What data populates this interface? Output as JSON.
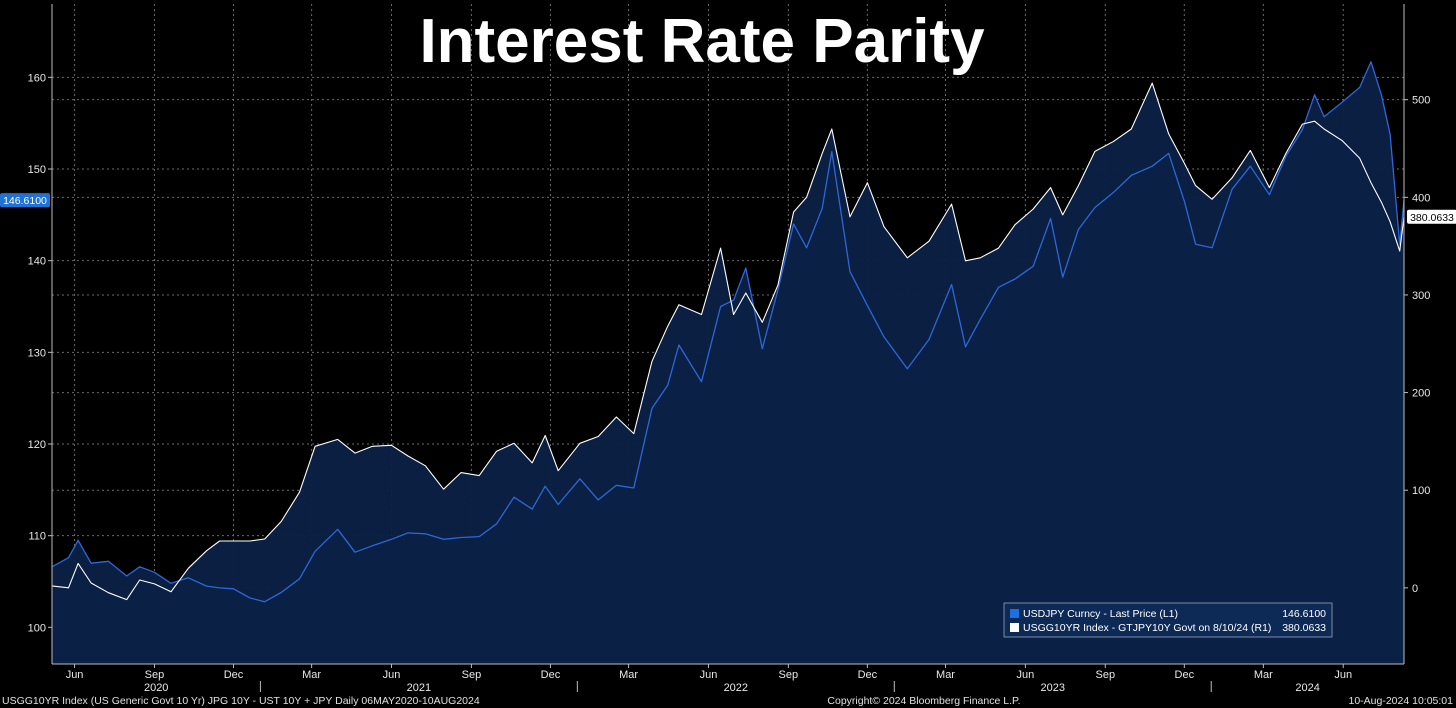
{
  "title": "Interest Rate Parity",
  "colors": {
    "background": "#000000",
    "area_fill": "#0b2146",
    "usdjpy_line": "#2e67d8",
    "spread_line": "#ffffff",
    "current_tag_left": "#1f73d6",
    "grid": "#6a6a6a"
  },
  "footer": {
    "left": "USGG10YR Index (US Generic Govt 10 Yr) JPG 10Y - UST 10Y + JPY  Daily 06MAY2020-10AUG2024",
    "center": "Copyright© 2024 Bloomberg Finance L.P.",
    "right": "10-Aug-2024 10:05:01"
  },
  "legend": {
    "items": [
      {
        "label": "USDJPY Curncy - Last Price (L1)",
        "value": "146.6100",
        "color": "#1f6fe0"
      },
      {
        "label": "USGG10YR Index - GTJPY10Y Govt on 8/10/24 (R1)",
        "value": "380.0633",
        "color": "#ffffff"
      }
    ]
  },
  "chart_data": {
    "type": "line",
    "grid": true,
    "legend_position": "bottom-right",
    "x_range": [
      "2020-05-06",
      "2024-08-10"
    ],
    "x_month_ticks": [
      "Jun",
      "Sep",
      "Dec",
      "Mar",
      "Jun",
      "Sep",
      "Dec",
      "Mar",
      "Jun",
      "Sep",
      "Dec",
      "Mar",
      "Jun",
      "Sep",
      "Dec",
      "Mar",
      "Jun"
    ],
    "x_year_labels": [
      "2020",
      "2021",
      "2022",
      "2023",
      "2024"
    ],
    "left_axis": {
      "ticks": [
        100,
        110,
        120,
        130,
        140,
        150,
        160
      ],
      "ylim": [
        96,
        168
      ],
      "current_value_tag": "146.6100"
    },
    "right_axis": {
      "ticks": [
        0,
        100,
        200,
        300,
        400,
        500
      ],
      "ylim": [
        -78,
        598
      ],
      "current_value_tag": "380.0633"
    },
    "series": [
      {
        "name": "USDJPY Curncy - Last Price (L1)",
        "axis": "left",
        "points": [
          [
            "2020-05-06",
            106.6
          ],
          [
            "2020-05-25",
            107.6
          ],
          [
            "2020-06-05",
            109.5
          ],
          [
            "2020-06-20",
            107.0
          ],
          [
            "2020-07-10",
            107.2
          ],
          [
            "2020-07-31",
            105.6
          ],
          [
            "2020-08-15",
            106.6
          ],
          [
            "2020-09-01",
            106.0
          ],
          [
            "2020-09-20",
            104.8
          ],
          [
            "2020-10-10",
            105.4
          ],
          [
            "2020-10-31",
            104.5
          ],
          [
            "2020-11-15",
            104.3
          ],
          [
            "2020-12-01",
            104.2
          ],
          [
            "2020-12-20",
            103.2
          ],
          [
            "2021-01-06",
            102.8
          ],
          [
            "2021-01-25",
            103.8
          ],
          [
            "2021-02-15",
            105.3
          ],
          [
            "2021-03-05",
            108.3
          ],
          [
            "2021-03-31",
            110.7
          ],
          [
            "2021-04-20",
            108.2
          ],
          [
            "2021-05-10",
            108.9
          ],
          [
            "2021-06-01",
            109.6
          ],
          [
            "2021-06-20",
            110.3
          ],
          [
            "2021-07-10",
            110.2
          ],
          [
            "2021-07-31",
            109.6
          ],
          [
            "2021-08-20",
            109.8
          ],
          [
            "2021-09-10",
            109.9
          ],
          [
            "2021-09-30",
            111.3
          ],
          [
            "2021-10-20",
            114.2
          ],
          [
            "2021-11-10",
            112.9
          ],
          [
            "2021-11-25",
            115.4
          ],
          [
            "2021-12-10",
            113.4
          ],
          [
            "2022-01-04",
            116.2
          ],
          [
            "2022-01-25",
            113.9
          ],
          [
            "2022-02-15",
            115.5
          ],
          [
            "2022-03-07",
            115.2
          ],
          [
            "2022-03-28",
            123.9
          ],
          [
            "2022-04-15",
            126.4
          ],
          [
            "2022-04-28",
            130.8
          ],
          [
            "2022-05-24",
            126.8
          ],
          [
            "2022-06-15",
            135.0
          ],
          [
            "2022-06-30",
            135.7
          ],
          [
            "2022-07-14",
            139.2
          ],
          [
            "2022-08-02",
            130.4
          ],
          [
            "2022-08-20",
            136.8
          ],
          [
            "2022-09-07",
            144.0
          ],
          [
            "2022-09-22",
            141.4
          ],
          [
            "2022-10-10",
            145.7
          ],
          [
            "2022-10-21",
            151.9
          ],
          [
            "2022-11-11",
            138.8
          ],
          [
            "2022-12-01",
            135.1
          ],
          [
            "2022-12-20",
            131.7
          ],
          [
            "2023-01-16",
            128.2
          ],
          [
            "2023-02-10",
            131.4
          ],
          [
            "2023-03-08",
            137.4
          ],
          [
            "2023-03-24",
            130.6
          ],
          [
            "2023-04-10",
            133.6
          ],
          [
            "2023-05-01",
            137.1
          ],
          [
            "2023-05-20",
            138.0
          ],
          [
            "2023-06-10",
            139.4
          ],
          [
            "2023-06-30",
            144.6
          ],
          [
            "2023-07-14",
            138.2
          ],
          [
            "2023-08-01",
            143.4
          ],
          [
            "2023-08-20",
            145.8
          ],
          [
            "2023-09-10",
            147.4
          ],
          [
            "2023-10-01",
            149.3
          ],
          [
            "2023-10-25",
            150.3
          ],
          [
            "2023-11-13",
            151.7
          ],
          [
            "2023-12-01",
            146.5
          ],
          [
            "2023-12-14",
            141.8
          ],
          [
            "2024-01-02",
            141.4
          ],
          [
            "2024-01-25",
            147.8
          ],
          [
            "2024-02-15",
            150.3
          ],
          [
            "2024-03-08",
            147.2
          ],
          [
            "2024-03-27",
            151.4
          ],
          [
            "2024-04-15",
            154.3
          ],
          [
            "2024-04-29",
            158.1
          ],
          [
            "2024-05-10",
            155.7
          ],
          [
            "2024-05-31",
            157.3
          ],
          [
            "2024-06-20",
            158.9
          ],
          [
            "2024-07-03",
            161.7
          ],
          [
            "2024-07-15",
            158.1
          ],
          [
            "2024-07-25",
            153.8
          ],
          [
            "2024-08-05",
            141.8
          ],
          [
            "2024-08-10",
            146.6
          ]
        ]
      },
      {
        "name": "USGG10YR Index - GTJPY10Y Govt on 8/10/24 (R1)",
        "axis": "right",
        "points": [
          [
            "2020-05-06",
            2
          ],
          [
            "2020-05-25",
            0
          ],
          [
            "2020-06-05",
            25
          ],
          [
            "2020-06-20",
            5
          ],
          [
            "2020-07-10",
            -5
          ],
          [
            "2020-07-31",
            -12
          ],
          [
            "2020-08-15",
            8
          ],
          [
            "2020-09-01",
            4
          ],
          [
            "2020-09-20",
            -4
          ],
          [
            "2020-10-10",
            20
          ],
          [
            "2020-10-31",
            38
          ],
          [
            "2020-11-15",
            48
          ],
          [
            "2020-12-01",
            48
          ],
          [
            "2020-12-20",
            48
          ],
          [
            "2021-01-06",
            50
          ],
          [
            "2021-01-25",
            68
          ],
          [
            "2021-02-15",
            98
          ],
          [
            "2021-03-05",
            145
          ],
          [
            "2021-03-31",
            152
          ],
          [
            "2021-04-20",
            138
          ],
          [
            "2021-05-10",
            145
          ],
          [
            "2021-06-01",
            146
          ],
          [
            "2021-06-20",
            135
          ],
          [
            "2021-07-10",
            125
          ],
          [
            "2021-07-31",
            101
          ],
          [
            "2021-08-20",
            118
          ],
          [
            "2021-09-10",
            115
          ],
          [
            "2021-09-30",
            140
          ],
          [
            "2021-10-20",
            148
          ],
          [
            "2021-11-10",
            128
          ],
          [
            "2021-11-25",
            156
          ],
          [
            "2021-12-10",
            120
          ],
          [
            "2022-01-04",
            148
          ],
          [
            "2022-01-25",
            155
          ],
          [
            "2022-02-15",
            175
          ],
          [
            "2022-03-07",
            158
          ],
          [
            "2022-03-28",
            232
          ],
          [
            "2022-04-15",
            268
          ],
          [
            "2022-04-28",
            290
          ],
          [
            "2022-05-24",
            280
          ],
          [
            "2022-06-15",
            348
          ],
          [
            "2022-06-30",
            280
          ],
          [
            "2022-07-14",
            302
          ],
          [
            "2022-08-02",
            272
          ],
          [
            "2022-08-20",
            310
          ],
          [
            "2022-09-07",
            385
          ],
          [
            "2022-09-22",
            400
          ],
          [
            "2022-10-10",
            445
          ],
          [
            "2022-10-21",
            470
          ],
          [
            "2022-11-11",
            380
          ],
          [
            "2022-12-01",
            415
          ],
          [
            "2022-12-20",
            370
          ],
          [
            "2023-01-16",
            338
          ],
          [
            "2023-02-10",
            355
          ],
          [
            "2023-03-08",
            393
          ],
          [
            "2023-03-24",
            335
          ],
          [
            "2023-04-10",
            338
          ],
          [
            "2023-05-01",
            348
          ],
          [
            "2023-05-20",
            372
          ],
          [
            "2023-06-10",
            388
          ],
          [
            "2023-06-30",
            410
          ],
          [
            "2023-07-14",
            382
          ],
          [
            "2023-08-01",
            412
          ],
          [
            "2023-08-20",
            447
          ],
          [
            "2023-09-10",
            457
          ],
          [
            "2023-10-01",
            470
          ],
          [
            "2023-10-25",
            517
          ],
          [
            "2023-11-13",
            465
          ],
          [
            "2023-12-01",
            435
          ],
          [
            "2023-12-14",
            412
          ],
          [
            "2024-01-02",
            398
          ],
          [
            "2024-01-25",
            420
          ],
          [
            "2024-02-15",
            448
          ],
          [
            "2024-03-08",
            410
          ],
          [
            "2024-03-27",
            445
          ],
          [
            "2024-04-15",
            475
          ],
          [
            "2024-04-29",
            478
          ],
          [
            "2024-05-10",
            470
          ],
          [
            "2024-05-31",
            458
          ],
          [
            "2024-06-20",
            440
          ],
          [
            "2024-07-03",
            415
          ],
          [
            "2024-07-15",
            395
          ],
          [
            "2024-07-25",
            375
          ],
          [
            "2024-08-05",
            345
          ],
          [
            "2024-08-10",
            380
          ]
        ]
      }
    ]
  }
}
